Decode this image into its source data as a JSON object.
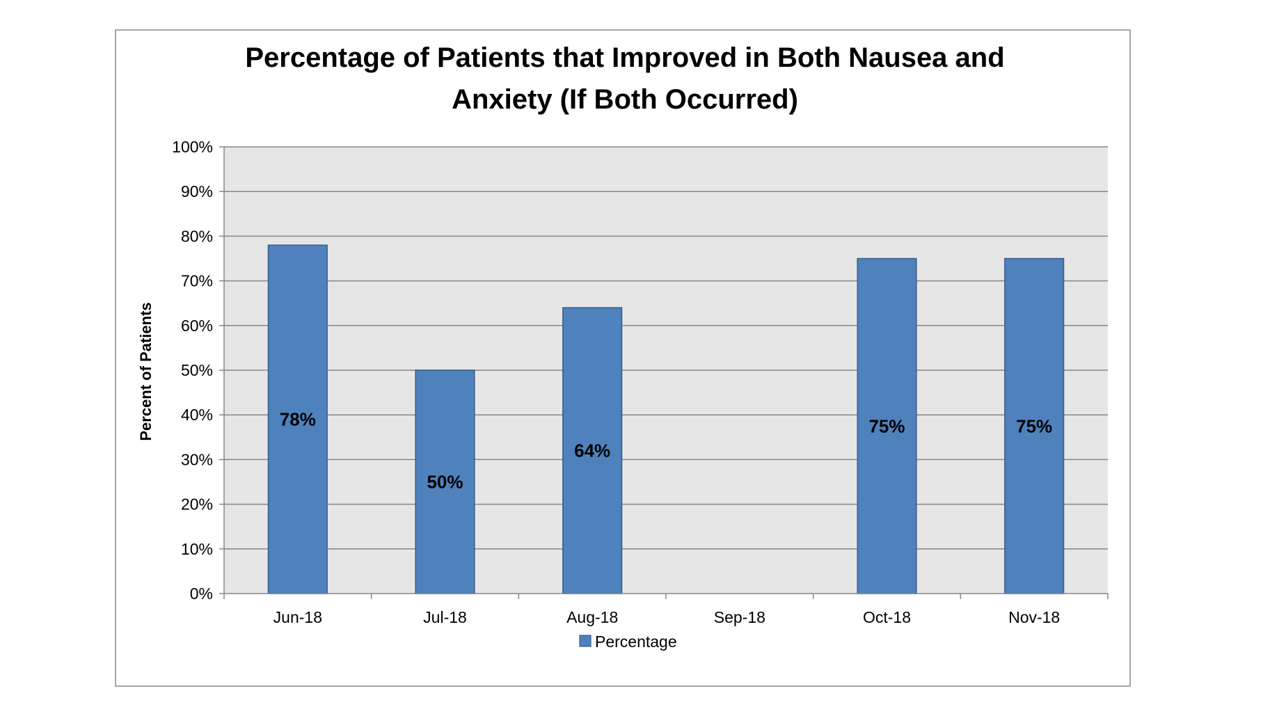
{
  "chart_data": {
    "type": "bar",
    "title_lines": [
      "Percentage of Patients that Improved in Both Nausea and",
      "Anxiety (If Both Occurred)"
    ],
    "xlabel": "",
    "ylabel": "Percent of Patients",
    "categories": [
      "Jun-18",
      "Jul-18",
      "Aug-18",
      "Sep-18",
      "Oct-18",
      "Nov-18"
    ],
    "series": [
      {
        "name": "Percentage",
        "values": [
          78,
          50,
          64,
          null,
          75,
          75
        ],
        "data_labels": [
          "78%",
          "50%",
          "64%",
          "",
          "75%",
          "75%"
        ],
        "color": "#4f81bd"
      }
    ],
    "ylim": [
      0,
      100
    ],
    "y_ticks": [
      "0%",
      "10%",
      "20%",
      "30%",
      "40%",
      "50%",
      "60%",
      "70%",
      "80%",
      "90%",
      "100%"
    ],
    "grid": true,
    "legend": "bottom",
    "plot_background": "#e6e6e6",
    "bar_border_color": "#385d8a",
    "gridline_color": "#868686"
  }
}
